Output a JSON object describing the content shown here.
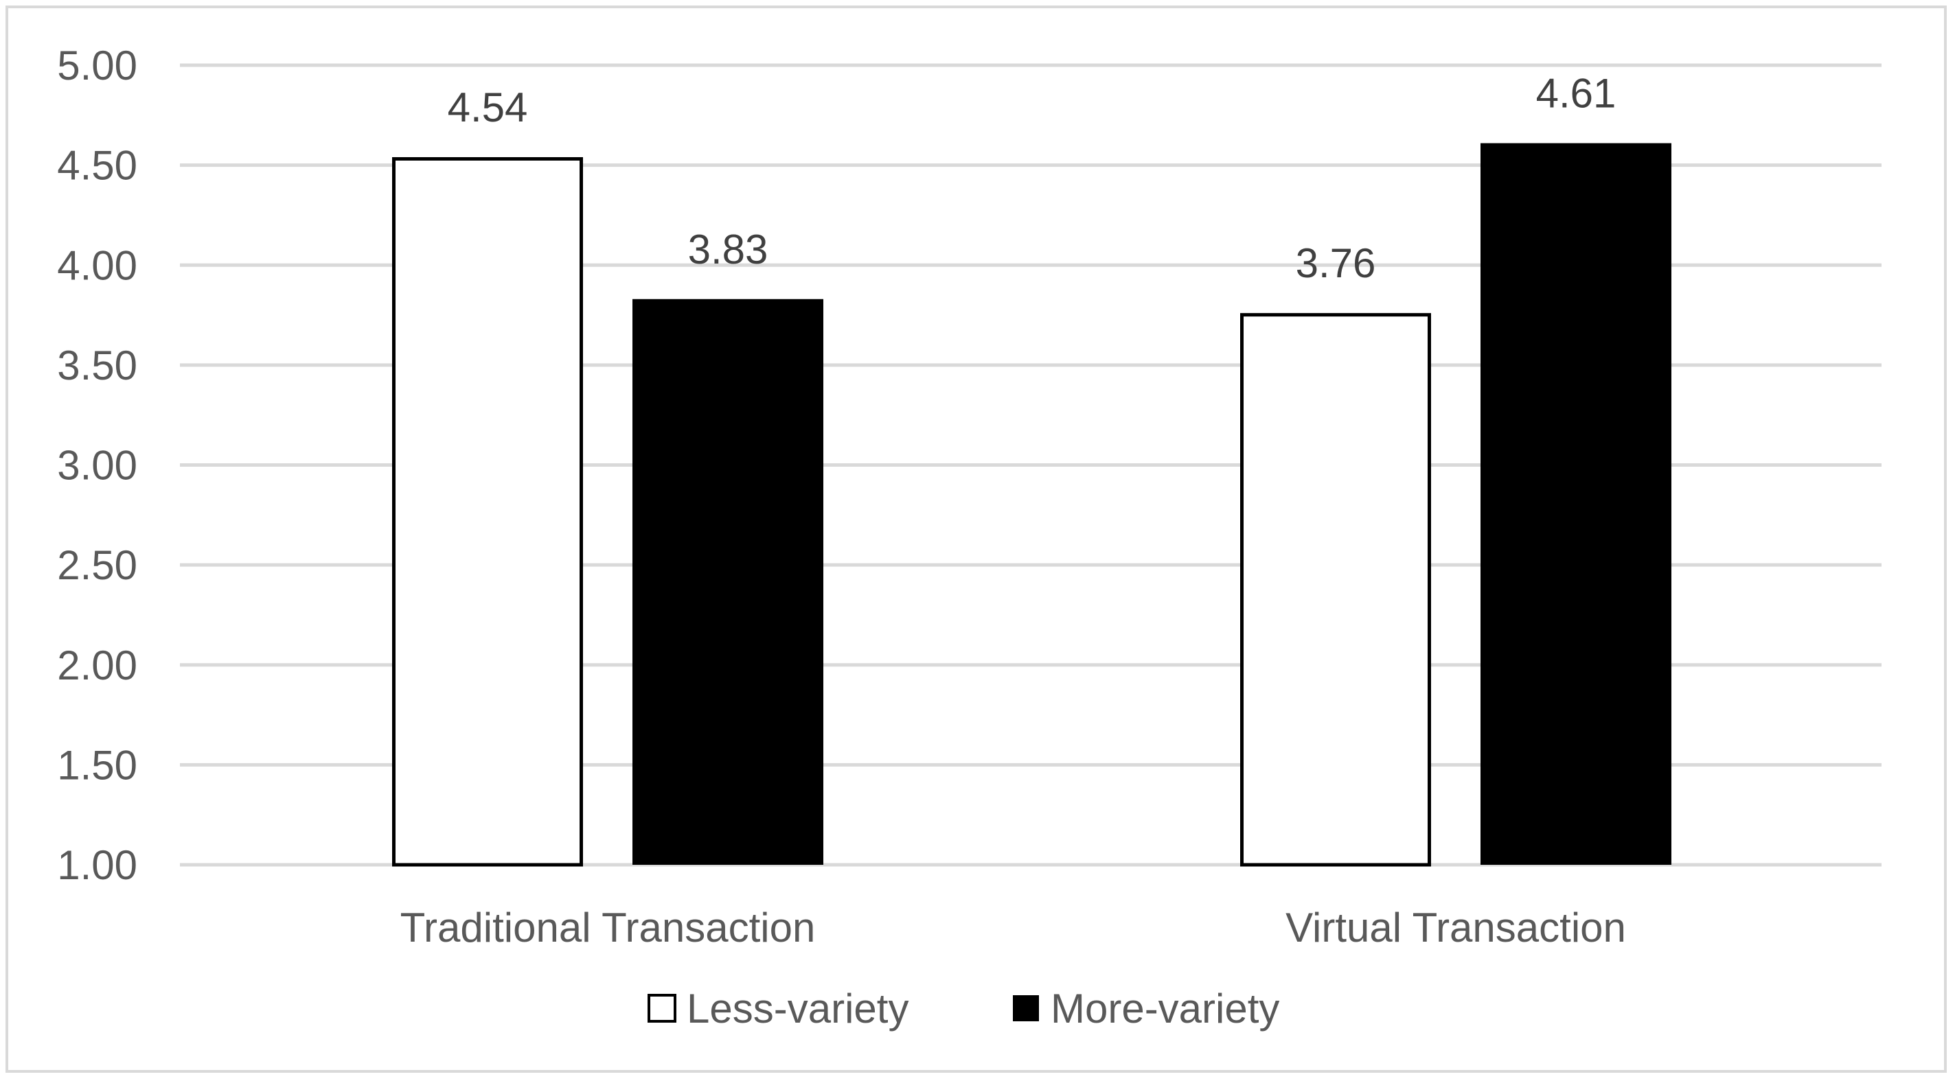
{
  "chart_data": {
    "type": "bar",
    "categories": [
      "Traditional Transaction",
      "Virtual Transaction"
    ],
    "series": [
      {
        "name": "Less-variety",
        "values": [
          4.54,
          3.76
        ],
        "fill": "#ffffff",
        "stroke": "#000000"
      },
      {
        "name": "More-variety",
        "values": [
          3.83,
          4.61
        ],
        "fill": "#000000",
        "stroke": "#000000"
      }
    ],
    "data_labels": [
      [
        "4.54",
        "3.76"
      ],
      [
        "3.83",
        "4.61"
      ]
    ],
    "title": "",
    "xlabel": "",
    "ylabel": "",
    "ylim": [
      1.0,
      5.0
    ],
    "yticks": [
      "1.00",
      "1.50",
      "2.00",
      "2.50",
      "3.00",
      "3.50",
      "4.00",
      "4.50",
      "5.00"
    ],
    "ytick_values": [
      1.0,
      1.5,
      2.0,
      2.5,
      3.0,
      3.5,
      4.0,
      4.5,
      5.0
    ],
    "grid": true,
    "grid_color": "#d9d9d9",
    "legend_position": "bottom"
  }
}
